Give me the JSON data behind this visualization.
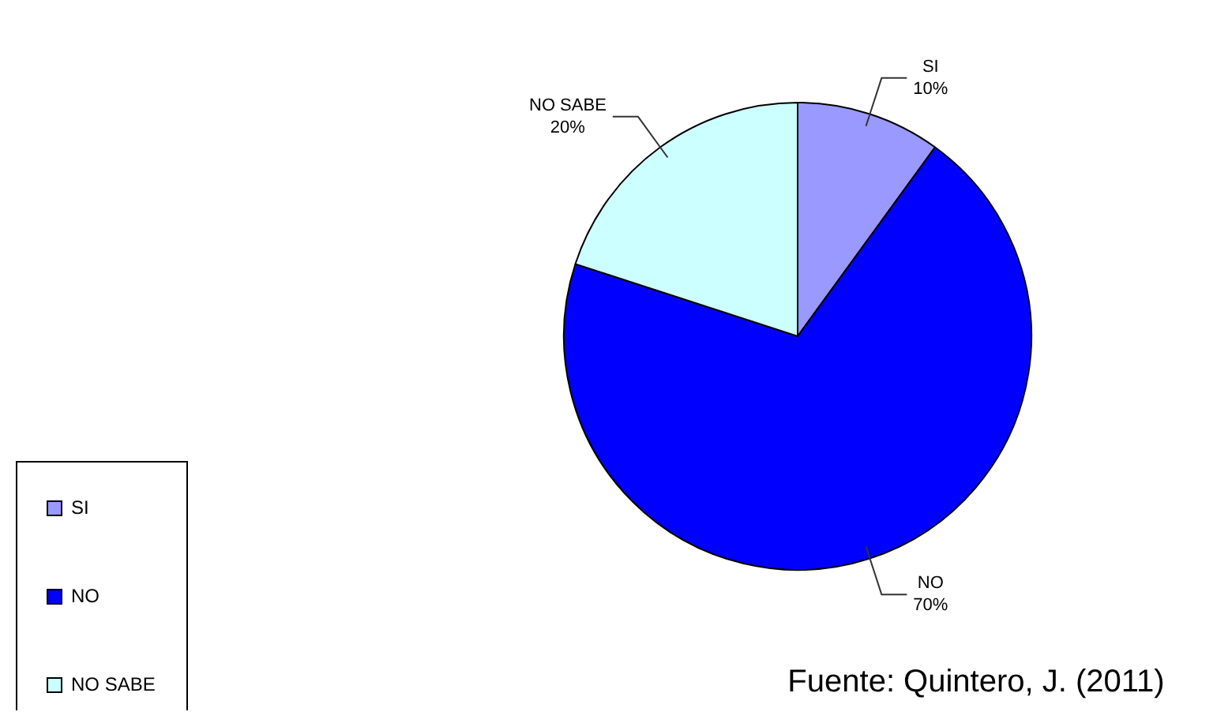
{
  "chart_data": {
    "type": "pie",
    "categories": [
      "SI",
      "NO",
      "NO SABE"
    ],
    "values": [
      10,
      70,
      20
    ],
    "colors": [
      "#9999ff",
      "#0000ff",
      "#ccffff"
    ],
    "value_labels": [
      "10%",
      "70%",
      "20%"
    ],
    "legend": "bottom left",
    "annotations": [
      "Fuente: Quintero, J. (2011)"
    ]
  }
}
